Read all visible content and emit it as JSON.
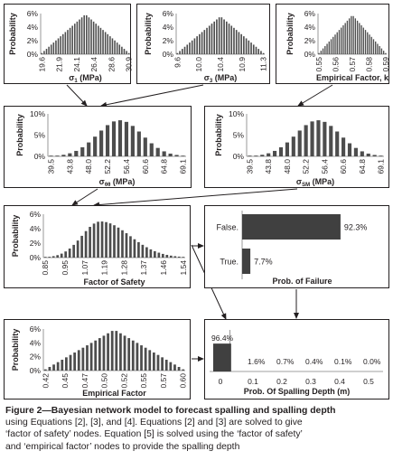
{
  "panels": {
    "sigma1": {
      "ylabel": "Probability",
      "xlabel": "σ₁ (MPa)",
      "yticks": [
        "6%",
        "4%",
        "2%",
        "0%"
      ],
      "xticks": [
        "19.6",
        "21.9",
        "24.1",
        "26.4",
        "28.6",
        "30.9"
      ]
    },
    "sigma3": {
      "ylabel": "Probability",
      "xlabel": "σ₃ (MPa)",
      "yticks": [
        "6%",
        "4%",
        "2%",
        "0%"
      ],
      "xticks": [
        "9.6",
        "10.0",
        "10.4",
        "10.9",
        "11.3"
      ]
    },
    "empk": {
      "ylabel": "Probability",
      "xlabel": "Empirical Factor, k",
      "yticks": [
        "6%",
        "4%",
        "2%",
        "0%"
      ],
      "xticks": [
        "0.55",
        "0.56",
        "0.57",
        "0.58",
        "0.59"
      ]
    },
    "sigmatheta": {
      "ylabel": "Probability",
      "xlabel": "σθθ (MPa)",
      "yticks": [
        "10%",
        "5%",
        "0%"
      ],
      "xticks": [
        "39.5",
        "43.8",
        "48.0",
        "52.2",
        "56.4",
        "60.6",
        "64.8",
        "69.1"
      ]
    },
    "sigmasm": {
      "ylabel": "Probability",
      "xlabel": "σSM (MPa)",
      "yticks": [
        "10%",
        "5%",
        "0%"
      ],
      "xticks": [
        "39.5",
        "43.8",
        "48.0",
        "52.2",
        "56.4",
        "60.6",
        "64.8",
        "69.1"
      ]
    },
    "fos": {
      "ylabel": "Probability",
      "xlabel": "Factor of Safety",
      "yticks": [
        "6%",
        "4%",
        "2%",
        "0%"
      ],
      "xticks": [
        "0.85",
        "0.95",
        "1.07",
        "1.19",
        "1.28",
        "1.37",
        "1.46",
        "1.54"
      ]
    },
    "failure": {
      "xlabel": "Prob. of Failure",
      "categories": [
        "False.",
        "True."
      ],
      "value_labels": [
        "92.3%",
        "7.7%"
      ]
    },
    "empfactor": {
      "ylabel": "Probability",
      "xlabel": "Empirical Factor",
      "yticks": [
        "6%",
        "4%",
        "2%",
        "0%"
      ],
      "xticks": [
        "0.42",
        "0.45",
        "0.47",
        "0.50",
        "0.52",
        "0.55",
        "0.57",
        "0.60"
      ]
    },
    "spalling": {
      "xlabel": "Prob. Of Spalling Depth (m)",
      "xticks": [
        "0",
        "0.1",
        "0.2",
        "0.3",
        "0.4",
        "0.5"
      ],
      "value_labels": [
        "96.4%",
        "1.6%",
        "0.7%",
        "0.4%",
        "0.1%",
        "0.0%"
      ]
    }
  },
  "caption": {
    "bold": "Figure 2—Bayesian network model to forecast spalling and spalling depth",
    "line2": "using Equations [2], [3], and [4]. Equations [2] and [3] are solved to give",
    "line3": "‘factor of safety’ nodes. Equation [5] is solved using the ‘factor of safety’",
    "line4": "and ‘empirical factor’ nodes to provide the spalling depth"
  },
  "chart_data": [
    {
      "type": "bar",
      "ylabel": "Probability",
      "xlabel": "σ₁ (MPa)",
      "ylim": [
        0,
        6
      ],
      "x_range": [
        19.6,
        30.9
      ],
      "bar_count": 38,
      "shape": "symmetric triangle",
      "peak": 5.9,
      "tick_labels": [
        "19.6",
        "21.9",
        "24.1",
        "26.4",
        "28.6",
        "30.9"
      ]
    },
    {
      "type": "bar",
      "ylabel": "Probability",
      "xlabel": "σ₃ (MPa)",
      "ylim": [
        0,
        6
      ],
      "x_range": [
        9.6,
        11.3
      ],
      "bar_count": 36,
      "shape": "symmetric triangle",
      "peak": 5.6,
      "tick_labels": [
        "9.6",
        "10.0",
        "10.4",
        "10.9",
        "11.3"
      ]
    },
    {
      "type": "bar",
      "ylabel": "Probability",
      "xlabel": "Empirical Factor, k",
      "ylim": [
        0,
        6
      ],
      "x_range": [
        0.55,
        0.59
      ],
      "bar_count": 34,
      "shape": "symmetric triangle",
      "peak": 5.8,
      "tick_labels": [
        "0.55",
        "0.56",
        "0.57",
        "0.58",
        "0.59"
      ]
    },
    {
      "type": "bar",
      "ylabel": "Probability",
      "xlabel": "σθθ (MPa)",
      "ylim": [
        0,
        10
      ],
      "x_range": [
        39.5,
        69.1
      ],
      "bar_count": 22,
      "shape": "bell",
      "peak": 8.5,
      "tick_labels": [
        "39.5",
        "43.8",
        "48.0",
        "52.2",
        "56.4",
        "60.6",
        "64.8",
        "69.1"
      ]
    },
    {
      "type": "bar",
      "ylabel": "Probability",
      "xlabel": "σSM (MPa)",
      "ylim": [
        0,
        10
      ],
      "x_range": [
        39.5,
        69.1
      ],
      "bar_count": 22,
      "shape": "bell",
      "peak": 8.5,
      "tick_labels": [
        "39.5",
        "43.8",
        "48.0",
        "52.2",
        "56.4",
        "60.6",
        "64.8",
        "69.1"
      ]
    },
    {
      "type": "bar",
      "ylabel": "Probability",
      "xlabel": "Factor of Safety",
      "ylim": [
        0,
        6
      ],
      "x_range": [
        0.85,
        1.54
      ],
      "bar_count": 35,
      "shape": "right-skewed bell",
      "peak": 5.0,
      "tick_labels": [
        "0.85",
        "0.95",
        "1.07",
        "1.19",
        "1.28",
        "1.37",
        "1.46",
        "1.54"
      ]
    },
    {
      "type": "bar",
      "orientation": "horizontal",
      "xlabel": "Prob. of Failure",
      "categories": [
        "False.",
        "True."
      ],
      "values": [
        92.3,
        7.7
      ]
    },
    {
      "type": "bar",
      "ylabel": "Probability",
      "xlabel": "Empirical Factor",
      "ylim": [
        0,
        6
      ],
      "x_range": [
        0.42,
        0.6
      ],
      "bar_count": 34,
      "shape": "symmetric triangle",
      "peak": 5.9,
      "tick_labels": [
        "0.42",
        "0.45",
        "0.47",
        "0.50",
        "0.52",
        "0.55",
        "0.57",
        "0.60"
      ]
    },
    {
      "type": "bar",
      "xlabel": "Prob. Of Spalling Depth (m)",
      "categories": [
        "0",
        "0.1",
        "0.2",
        "0.3",
        "0.4",
        "0.5"
      ],
      "values": [
        96.4,
        1.6,
        0.7,
        0.4,
        0.1,
        0.0
      ]
    }
  ]
}
